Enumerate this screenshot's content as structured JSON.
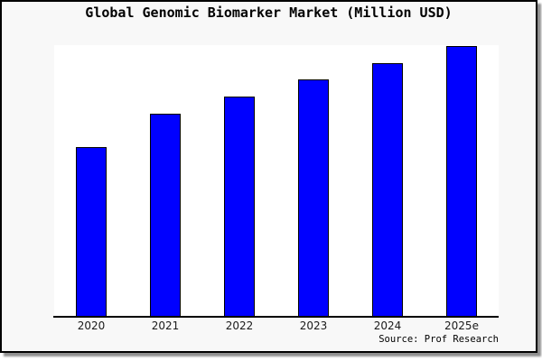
{
  "chart_data": {
    "type": "bar",
    "title": "Global Genomic Biomarker Market (Million USD)",
    "categories": [
      "2020",
      "2021",
      "2022",
      "2023",
      "2024",
      "2025e"
    ],
    "values": [
      188,
      225,
      244,
      263,
      281,
      300
    ],
    "xlabel": "",
    "ylabel": "",
    "ylim": [
      0,
      301
    ],
    "grid": false,
    "legend": false,
    "y_axis_visible": false,
    "bar_fill_color": "#0000ff",
    "bar_edge_color": "#000000"
  },
  "source": {
    "label": "Source: Prof Research"
  },
  "colors": {
    "figure_background": "#f8f8f8",
    "plot_background": "#ffffff",
    "frame_border": "#000000",
    "axis_line": "#000000",
    "title_text": "#000000",
    "tick_text": "#1a1a1a",
    "source_text": "#000000"
  }
}
